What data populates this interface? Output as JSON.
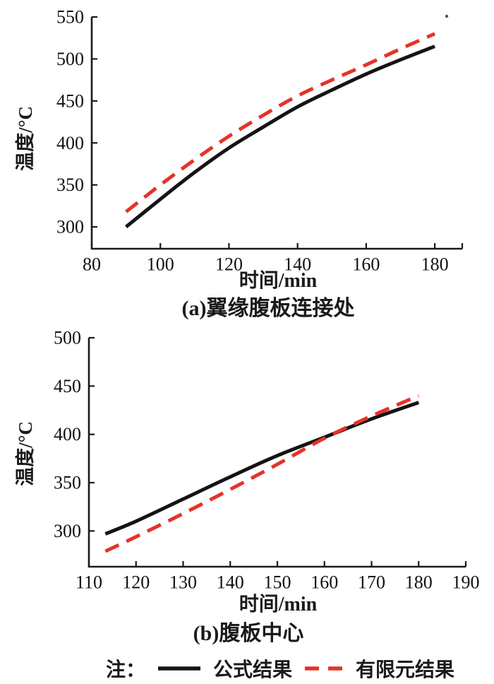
{
  "figure": {
    "background": "#ffffff"
  },
  "colors": {
    "axis": "#1a1a1a",
    "text": "#111111",
    "formula_line": "#141414",
    "fem_line": "#e63228"
  },
  "legend": {
    "position": "bottom",
    "prefix": "注：",
    "items": [
      {
        "label": "公式结果",
        "line_style": "solid",
        "color_key": "formula_line"
      },
      {
        "label": "有限元结果",
        "line_style": "dashed",
        "color_key": "fem_line"
      }
    ]
  },
  "chart_data": [
    {
      "id": "chart-a",
      "type": "line",
      "title": "(a)翼缘腹板连接处",
      "xlabel": "时间/min",
      "ylabel": "温度/°C",
      "xlim": [
        80,
        188
      ],
      "ylim": [
        274,
        550
      ],
      "x_ticks": [
        80,
        100,
        120,
        140,
        160,
        180
      ],
      "y_ticks": [
        300,
        350,
        400,
        450,
        500,
        550
      ],
      "grid": false,
      "series": [
        {
          "name": "公式结果",
          "style": "solid",
          "color_key": "formula_line",
          "points": [
            [
              90,
              300
            ],
            [
              100,
              333
            ],
            [
              110,
              365
            ],
            [
              120,
              394
            ],
            [
              130,
              419
            ],
            [
              140,
              443
            ],
            [
              150,
              463
            ],
            [
              160,
              482
            ],
            [
              170,
              499
            ],
            [
              180,
              515
            ]
          ]
        },
        {
          "name": "有限元结果",
          "style": "dashed",
          "color_key": "fem_line",
          "points": [
            [
              90,
              318
            ],
            [
              100,
              350
            ],
            [
              110,
              380
            ],
            [
              120,
              408
            ],
            [
              130,
              433
            ],
            [
              140,
              456
            ],
            [
              150,
              475
            ],
            [
              160,
              493
            ],
            [
              170,
              512
            ],
            [
              180,
              530
            ]
          ]
        }
      ]
    },
    {
      "id": "chart-b",
      "type": "line",
      "title": "(b)腹板中心",
      "xlabel": "时间/min",
      "ylabel": "温度/°C",
      "xlim": [
        110,
        190
      ],
      "ylim": [
        263,
        500
      ],
      "x_ticks": [
        110,
        120,
        130,
        140,
        150,
        160,
        170,
        180,
        190
      ],
      "y_ticks": [
        300,
        350,
        400,
        450,
        500
      ],
      "grid": false,
      "series": [
        {
          "name": "公式结果",
          "style": "solid",
          "color_key": "formula_line",
          "points": [
            [
              113.5,
              297
            ],
            [
              120,
              310
            ],
            [
              130,
              333
            ],
            [
              140,
              356
            ],
            [
              150,
              378
            ],
            [
              160,
              397
            ],
            [
              170,
              416
            ],
            [
              180,
              433
            ]
          ]
        },
        {
          "name": "有限元结果",
          "style": "dashed",
          "color_key": "fem_line",
          "points": [
            [
              113.5,
              279
            ],
            [
              120,
              294
            ],
            [
              130,
              318
            ],
            [
              140,
              343
            ],
            [
              150,
              369
            ],
            [
              160,
              396
            ],
            [
              170,
              419
            ],
            [
              180,
              440
            ]
          ]
        }
      ]
    }
  ]
}
